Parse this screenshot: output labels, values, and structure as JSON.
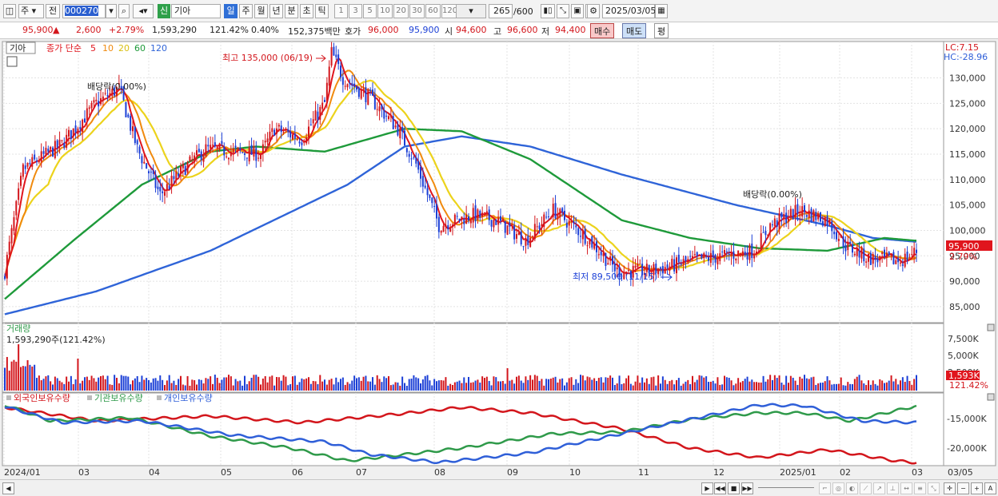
{
  "toolbar": {
    "market": "주",
    "type": "전",
    "code": "000270",
    "shin": "신",
    "name": "기아",
    "periods": [
      "일",
      "주",
      "월",
      "년",
      "분",
      "초",
      "틱"
    ],
    "selected_period": "일",
    "ticks": [
      "1",
      "3",
      "5",
      "10",
      "20",
      "30",
      "60",
      "120"
    ],
    "count": "265",
    "total": "/600",
    "date": "2025/03/05"
  },
  "quote": {
    "price": "95,900",
    "change_arrow": "▲",
    "change": "2,600",
    "change_pct": "+2.79%",
    "volume": "1,593,290",
    "vol_ratio": "121.42%",
    "turnover": "0.40%",
    "amount": "152,375백만",
    "ask_label": "호가",
    "ask1": "96,000",
    "bid1": "95,900",
    "open_label": "시",
    "open": "94,600",
    "high_label": "고",
    "high": "96,600",
    "low_label": "저",
    "low": "94,400",
    "buy": "매수",
    "sell": "매도",
    "avg": "평"
  },
  "legend": {
    "name": "기아",
    "ma_label": "종가 단순",
    "ma": [
      {
        "label": "5",
        "color": "#e0151d"
      },
      {
        "label": "10",
        "color": "#f08a0e"
      },
      {
        "label": "20",
        "color": "#ecd31c"
      },
      {
        "label": "60",
        "color": "#1e9a3a"
      },
      {
        "label": "120",
        "color": "#2f64d8"
      }
    ],
    "lc": "LC:7.15",
    "hc": "HC:-28.96"
  },
  "annotations": {
    "high": "최고 135,000 (06/19)",
    "low": "최저 89,500 (11/15)",
    "dividend1": "배당락(0.00%)",
    "dividend2": "배당락(0.00%)"
  },
  "price_axis": {
    "ticks": [
      "130,000",
      "125,000",
      "120,000",
      "115,000",
      "110,000",
      "105,000",
      "100,000",
      "95,000",
      "90,000",
      "85,000"
    ],
    "current": "95,900",
    "current_pct": "2.79%"
  },
  "volume_panel": {
    "title": "거래량",
    "value": "1,593,290주(121.42%)",
    "ticks": [
      "7,500K",
      "5,000K",
      "2,500K"
    ],
    "current": "1,593K",
    "current_pct": "121.42%"
  },
  "holdings_panel": {
    "labels": [
      "외국인보유수량",
      "기관보유수량",
      "개인보유수량"
    ],
    "colors": [
      "#d3161c",
      "#2f9a4a",
      "#2f5fd8"
    ],
    "ticks": [
      "-15,000K",
      "-20,000K"
    ]
  },
  "x_axis": {
    "labels": [
      "2024/01",
      "03",
      "04",
      "05",
      "06",
      "07",
      "08",
      "09",
      "10",
      "11",
      "12",
      "2025/01",
      "02",
      "03"
    ],
    "right": "03/05"
  },
  "chart_data": {
    "type": "candlestick",
    "series_anchors": {
      "ma120": [
        [
          0,
          83500
        ],
        [
          40,
          88000
        ],
        [
          90,
          96000
        ],
        [
          150,
          109000
        ],
        [
          175,
          116500
        ],
        [
          200,
          118500
        ],
        [
          230,
          116500
        ],
        [
          270,
          111000
        ],
        [
          320,
          105000
        ],
        [
          360,
          101000
        ],
        [
          380,
          98500
        ],
        [
          398,
          97800
        ]
      ],
      "ma60": [
        [
          0,
          86500
        ],
        [
          30,
          98000
        ],
        [
          60,
          109000
        ],
        [
          90,
          115500
        ],
        [
          110,
          116500
        ],
        [
          140,
          115500
        ],
        [
          175,
          120000
        ],
        [
          200,
          119500
        ],
        [
          230,
          114000
        ],
        [
          270,
          102000
        ],
        [
          300,
          98500
        ],
        [
          330,
          96500
        ],
        [
          360,
          96000
        ],
        [
          385,
          98500
        ],
        [
          398,
          98000
        ]
      ]
    },
    "ylim": [
      82000,
      137000
    ]
  }
}
